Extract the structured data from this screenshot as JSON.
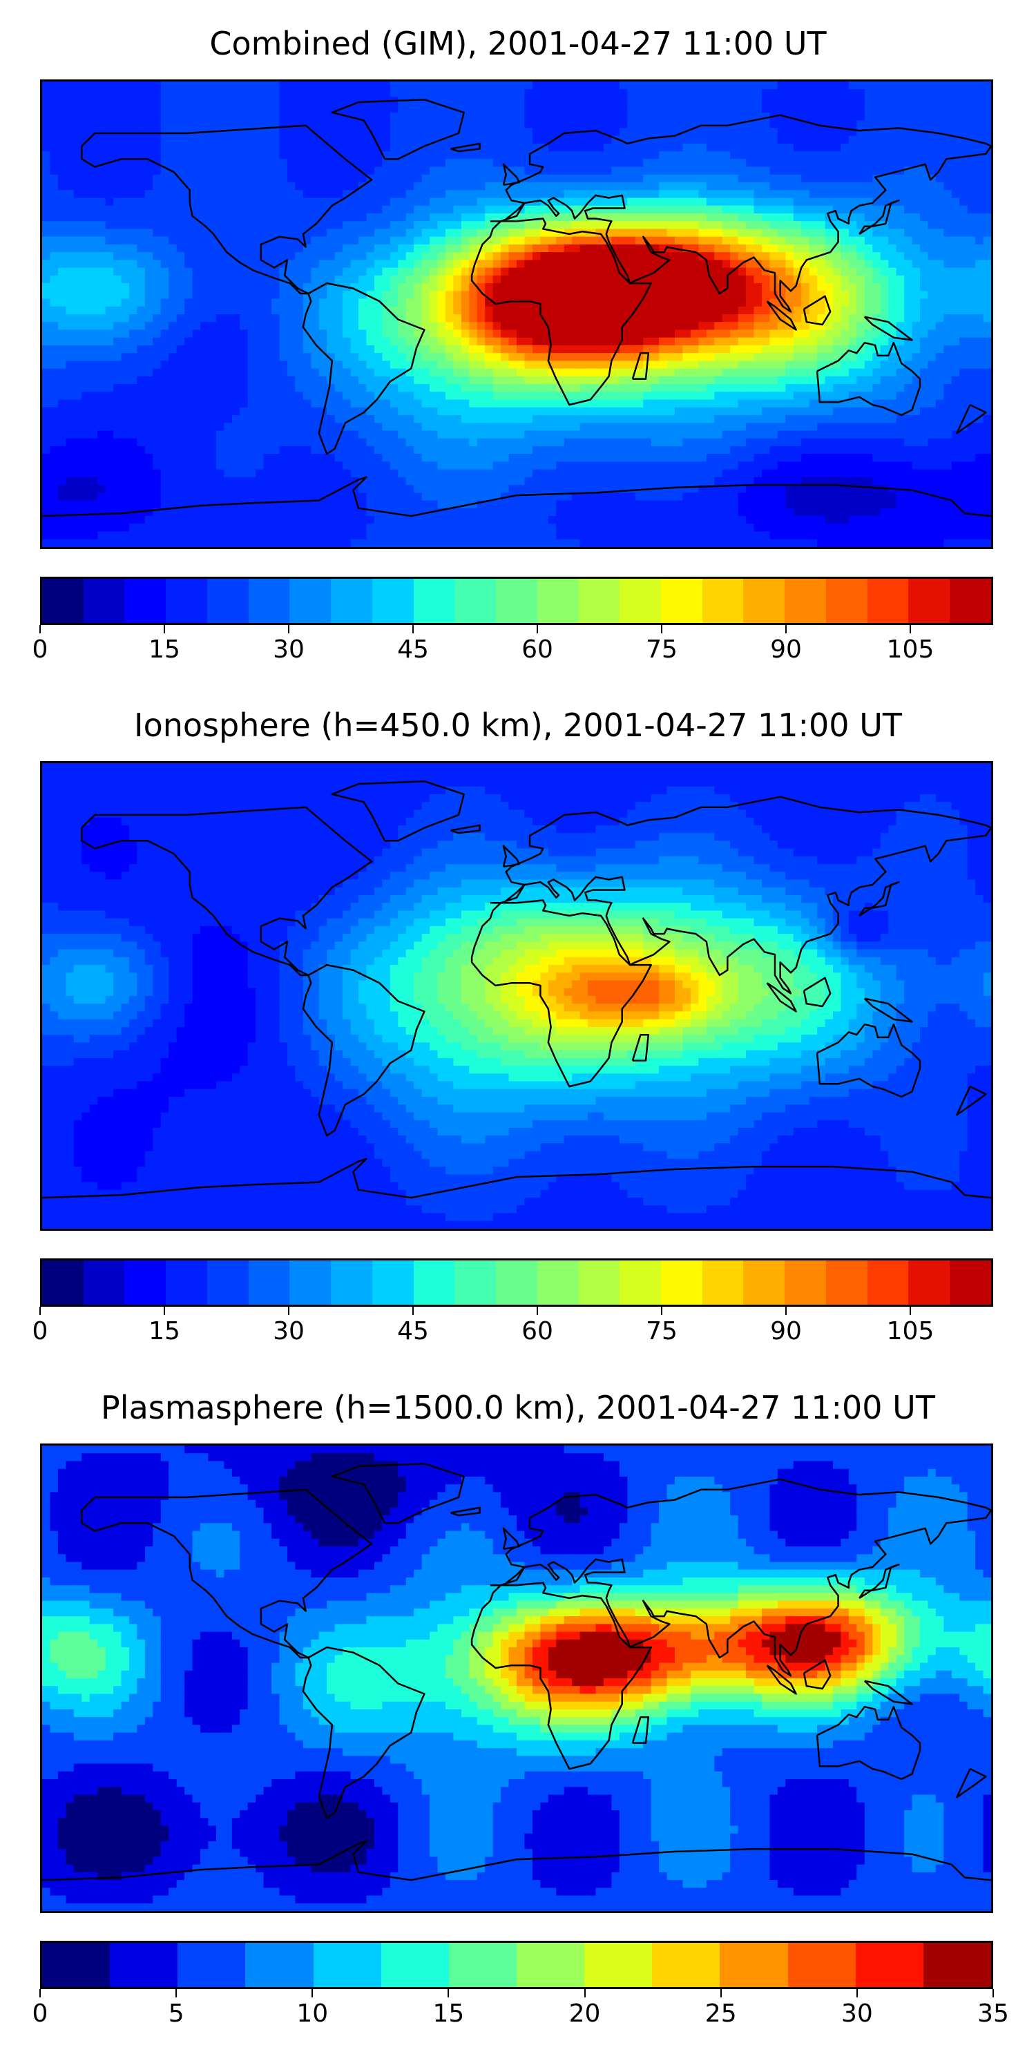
{
  "panels": [
    {
      "title": "Combined (GIM), 2001-04-27 11:00 UT",
      "colorbar": {
        "min": 0,
        "max": 115,
        "levels": 23,
        "ticks": [
          "0",
          "15",
          "30",
          "45",
          "60",
          "75",
          "90",
          "105"
        ],
        "tick_values": [
          0,
          15,
          30,
          45,
          60,
          75,
          90,
          105
        ]
      },
      "field": {
        "base": 20,
        "blobs": [
          {
            "lon": 35,
            "lat": 5,
            "amp": 80,
            "slon": 45,
            "slat": 18
          },
          {
            "lon": 15,
            "lat": 10,
            "amp": 35,
            "slon": 30,
            "slat": 20
          },
          {
            "lon": 60,
            "lat": 20,
            "amp": 30,
            "slon": 30,
            "slat": 15
          },
          {
            "lon": 110,
            "lat": 5,
            "amp": 35,
            "slon": 35,
            "slat": 25
          },
          {
            "lon": -10,
            "lat": -15,
            "amp": 25,
            "slon": 70,
            "slat": 30
          },
          {
            "lon": -160,
            "lat": 10,
            "amp": 20,
            "slon": 25,
            "slat": 15
          },
          {
            "lon": -100,
            "lat": -20,
            "amp": -10,
            "slon": 40,
            "slat": 30
          },
          {
            "lon": 140,
            "lat": -70,
            "amp": -12,
            "slon": 60,
            "slat": 15
          }
        ]
      }
    },
    {
      "title": "Ionosphere  (h=450.0 km), 2001-04-27 11:00 UT",
      "colorbar": {
        "min": 0,
        "max": 115,
        "levels": 23,
        "ticks": [
          "0",
          "15",
          "30",
          "45",
          "60",
          "75",
          "90",
          "105"
        ],
        "tick_values": [
          0,
          15,
          30,
          45,
          60,
          75,
          90,
          105
        ]
      },
      "field": {
        "base": 18,
        "blobs": [
          {
            "lon": 20,
            "lat": 10,
            "amp": 45,
            "slon": 55,
            "slat": 25
          },
          {
            "lon": 40,
            "lat": 0,
            "amp": 20,
            "slon": 20,
            "slat": 10
          },
          {
            "lon": 60,
            "lat": 0,
            "amp": 12,
            "slon": 15,
            "slat": 10
          },
          {
            "lon": 100,
            "lat": 0,
            "amp": 20,
            "slon": 40,
            "slat": 25
          },
          {
            "lon": -10,
            "lat": -20,
            "amp": 18,
            "slon": 60,
            "slat": 30
          },
          {
            "lon": -160,
            "lat": 5,
            "amp": 18,
            "slon": 20,
            "slat": 15
          },
          {
            "lon": -100,
            "lat": -10,
            "amp": -10,
            "slon": 40,
            "slat": 40
          },
          {
            "lon": 130,
            "lat": 25,
            "amp": -15,
            "slon": 10,
            "slat": 8
          }
        ]
      }
    },
    {
      "title": "Plasmasphere (h=1500.0 km), 2001-04-27 11:00 UT",
      "colorbar": {
        "min": 0,
        "max": 35,
        "levels": 14,
        "ticks": [
          "0",
          "5",
          "10",
          "15",
          "20",
          "25",
          "30",
          "35"
        ],
        "tick_values": [
          0,
          5,
          10,
          15,
          20,
          25,
          30,
          35
        ]
      },
      "field": {
        "base": 6,
        "blobs": [
          {
            "lon": 40,
            "lat": 10,
            "amp": 22,
            "slon": 35,
            "slat": 15
          },
          {
            "lon": 115,
            "lat": 15,
            "amp": 24,
            "slon": 28,
            "slat": 15
          },
          {
            "lon": 0,
            "lat": 0,
            "amp": 10,
            "slon": 50,
            "slat": 20
          },
          {
            "lon": -170,
            "lat": 10,
            "amp": 8,
            "slon": 20,
            "slat": 15
          },
          {
            "lon": -60,
            "lat": 75,
            "amp": -4,
            "slon": 50,
            "slat": 15
          },
          {
            "lon": -120,
            "lat": -60,
            "amp": -4,
            "slon": 50,
            "slat": 15
          }
        ]
      }
    }
  ],
  "colormap": [
    "#00007f",
    "#0000c8",
    "#0000ff",
    "#0020ff",
    "#0040ff",
    "#0064ff",
    "#0088ff",
    "#00acff",
    "#00d0ff",
    "#1cffda",
    "#44ffb2",
    "#6aff8c",
    "#8eff68",
    "#b2ff44",
    "#d6ff20",
    "#fffa00",
    "#ffd400",
    "#ffae00",
    "#ff8800",
    "#ff6200",
    "#ff3c00",
    "#e41000",
    "#c00000",
    "#8f0000"
  ],
  "colorbar_palette_35": [
    "#00007f",
    "#0000e4",
    "#0044ff",
    "#0088ff",
    "#00ccff",
    "#1cffda",
    "#5cff9a",
    "#9cff5a",
    "#dcff1a",
    "#ffd400",
    "#ff9400",
    "#ff5400",
    "#ff1400",
    "#a30000"
  ]
}
